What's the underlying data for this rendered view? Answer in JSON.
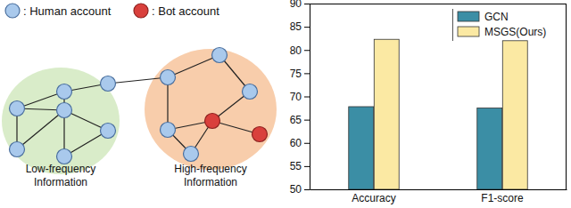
{
  "diagram": {
    "legend": [
      {
        "label": ": Human account",
        "kind": "human"
      },
      {
        "label": ": Bot account",
        "kind": "bot"
      }
    ],
    "regions": [
      {
        "label": [
          "Low-frequency",
          "Information"
        ],
        "kind": "low"
      },
      {
        "label": [
          "High-frequency",
          "Information"
        ],
        "kind": "high"
      }
    ],
    "nodes": [
      "human",
      "human",
      "human",
      "human",
      "human",
      "human",
      "human",
      "human",
      "human",
      "human",
      "human",
      "bot",
      "bot",
      "human"
    ],
    "edges": [
      [
        0,
        2
      ],
      [
        1,
        2
      ],
      [
        0,
        1
      ],
      [
        2,
        3
      ],
      [
        2,
        4
      ],
      [
        2,
        5
      ],
      [
        1,
        4
      ],
      [
        0,
        6
      ],
      [
        3,
        5
      ],
      [
        6,
        7
      ],
      [
        7,
        8
      ],
      [
        8,
        9
      ],
      [
        7,
        10
      ],
      [
        10,
        11
      ],
      [
        9,
        11
      ],
      [
        11,
        12
      ],
      [
        11,
        13
      ],
      [
        10,
        13
      ]
    ]
  },
  "chart_data": {
    "type": "bar",
    "categories": [
      "Accuracy",
      "F1-score"
    ],
    "series": [
      {
        "name": "GCN",
        "color": "#3b8ea5",
        "values": [
          67.8,
          67.5
        ]
      },
      {
        "name": "MSGS(Ours)",
        "color": "#fbe9a3",
        "values": [
          82.3,
          82.0
        ]
      }
    ],
    "ylim": [
      50,
      90
    ],
    "yticks": [
      50,
      55,
      60,
      65,
      70,
      75,
      80,
      85,
      90
    ],
    "legend": "upper right",
    "grid": false
  }
}
